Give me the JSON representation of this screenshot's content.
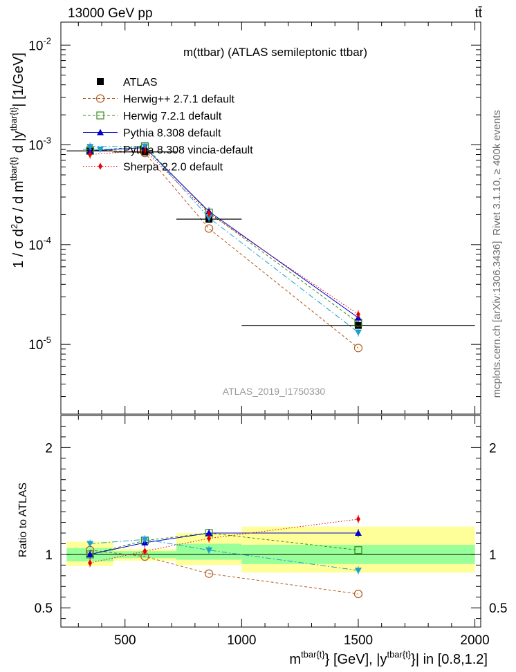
{
  "header": {
    "left": "13000 GeV pp",
    "right": "tt̄"
  },
  "side_labels": {
    "rivet": "Rivet 3.1.10, ≥ 400k events",
    "mcplots": "mcplots.cern.ch [arXiv:1306.3436]"
  },
  "watermark": "ATLAS_2019_I1750330",
  "chart_data": [
    {
      "type": "line",
      "title": "m(ttbar) (ATLAS semileptonic ttbar)",
      "ylabel": "1 / σ d²σ / d m^{tbar{t}} d |y^{tbar{t}}| [1/GeV]",
      "xlabel": "m^{tbar{t}} [GeV], |y^{tbar{t}}| in [0.8,1.2]",
      "yscale": "log",
      "ylim": [
        2e-06,
        0.017
      ],
      "xlim": [
        225,
        2025
      ],
      "x_ticks": [
        "500",
        "1000",
        "1500",
        "2000"
      ],
      "y_ticks": [
        "10^-5",
        "10^-4",
        "10^-3",
        "10^-2"
      ],
      "legend_position": "top-left",
      "data": {
        "x": [
          350,
          585,
          860,
          1500
        ],
        "xerr": [
          [
            250,
            450
          ],
          [
            450,
            720
          ],
          [
            720,
            1000
          ],
          [
            1000,
            2000
          ]
        ]
      },
      "series": [
        {
          "name": "ATLAS",
          "values": [
            0.00087,
            0.00085,
            0.00018,
            1.55e-05
          ],
          "color": "#000000",
          "marker": "filled-square",
          "style": "none"
        },
        {
          "name": "Herwig++ 2.7.1 default",
          "values": [
            0.00091,
            0.00083,
            0.000145,
            9.2e-06
          ],
          "color": "#b35c1e",
          "marker": "open-circle",
          "style": "dashed"
        },
        {
          "name": "Herwig 7.2.1 default",
          "values": [
            0.00087,
            0.00097,
            0.00021,
            1.65e-05
          ],
          "color": "#3a8a1a",
          "marker": "open-square",
          "style": "dashed"
        },
        {
          "name": "Pythia 8.308 default",
          "values": [
            0.00087,
            0.00094,
            0.000215,
            1.85e-05
          ],
          "color": "#0000cc",
          "marker": "filled-triangle-up",
          "style": "solid"
        },
        {
          "name": "Pythia 8.308 vincia-default",
          "values": [
            0.00096,
            0.00097,
            0.000186,
            1.32e-05
          ],
          "color": "#1da0c8",
          "marker": "filled-triangle-down",
          "style": "dashdot"
        },
        {
          "name": "Sherpa 2.2.0 default",
          "values": [
            0.0008,
            0.00088,
            0.000205,
            2e-05
          ],
          "color": "#e60000",
          "marker": "filled-diamond",
          "style": "dotted"
        }
      ]
    },
    {
      "type": "line",
      "ylabel": "Ratio to ATLAS",
      "xlabel": "m^{tbar{t}} [GeV], |y^{tbar{t}}| in [0.8,1.2]",
      "ylim": [
        0.32,
        2.3
      ],
      "xlim": [
        225,
        2025
      ],
      "y_ticks": [
        "0.5",
        "1",
        "2"
      ],
      "bands": {
        "bins": [
          [
            250,
            450
          ],
          [
            450,
            720
          ],
          [
            720,
            1000
          ],
          [
            1000,
            2000
          ]
        ],
        "stat": [
          [
            0.935,
            1.06
          ],
          [
            0.965,
            1.03
          ],
          [
            0.95,
            1.1
          ],
          [
            0.91,
            1.09
          ]
        ],
        "total": [
          [
            0.89,
            1.12
          ],
          [
            0.94,
            1.05
          ],
          [
            0.9,
            1.2
          ],
          [
            0.83,
            1.26
          ]
        ],
        "stat_color": "#99ff99",
        "total_color": "#ffff99"
      },
      "series": [
        {
          "name": "Herwig++ 2.7.1 default",
          "values": [
            1.04,
            0.98,
            0.82,
            0.63
          ]
        },
        {
          "name": "Herwig 7.2.1 default",
          "values": [
            1.0,
            1.13,
            1.2,
            1.04
          ]
        },
        {
          "name": "Pythia 8.308 default",
          "values": [
            1.0,
            1.11,
            1.2,
            1.2
          ]
        },
        {
          "name": "Pythia 8.308 vincia-default",
          "values": [
            1.1,
            1.14,
            1.04,
            0.85
          ]
        },
        {
          "name": "Sherpa 2.2.0 default",
          "values": [
            0.92,
            1.03,
            1.15,
            1.33
          ]
        }
      ]
    }
  ]
}
